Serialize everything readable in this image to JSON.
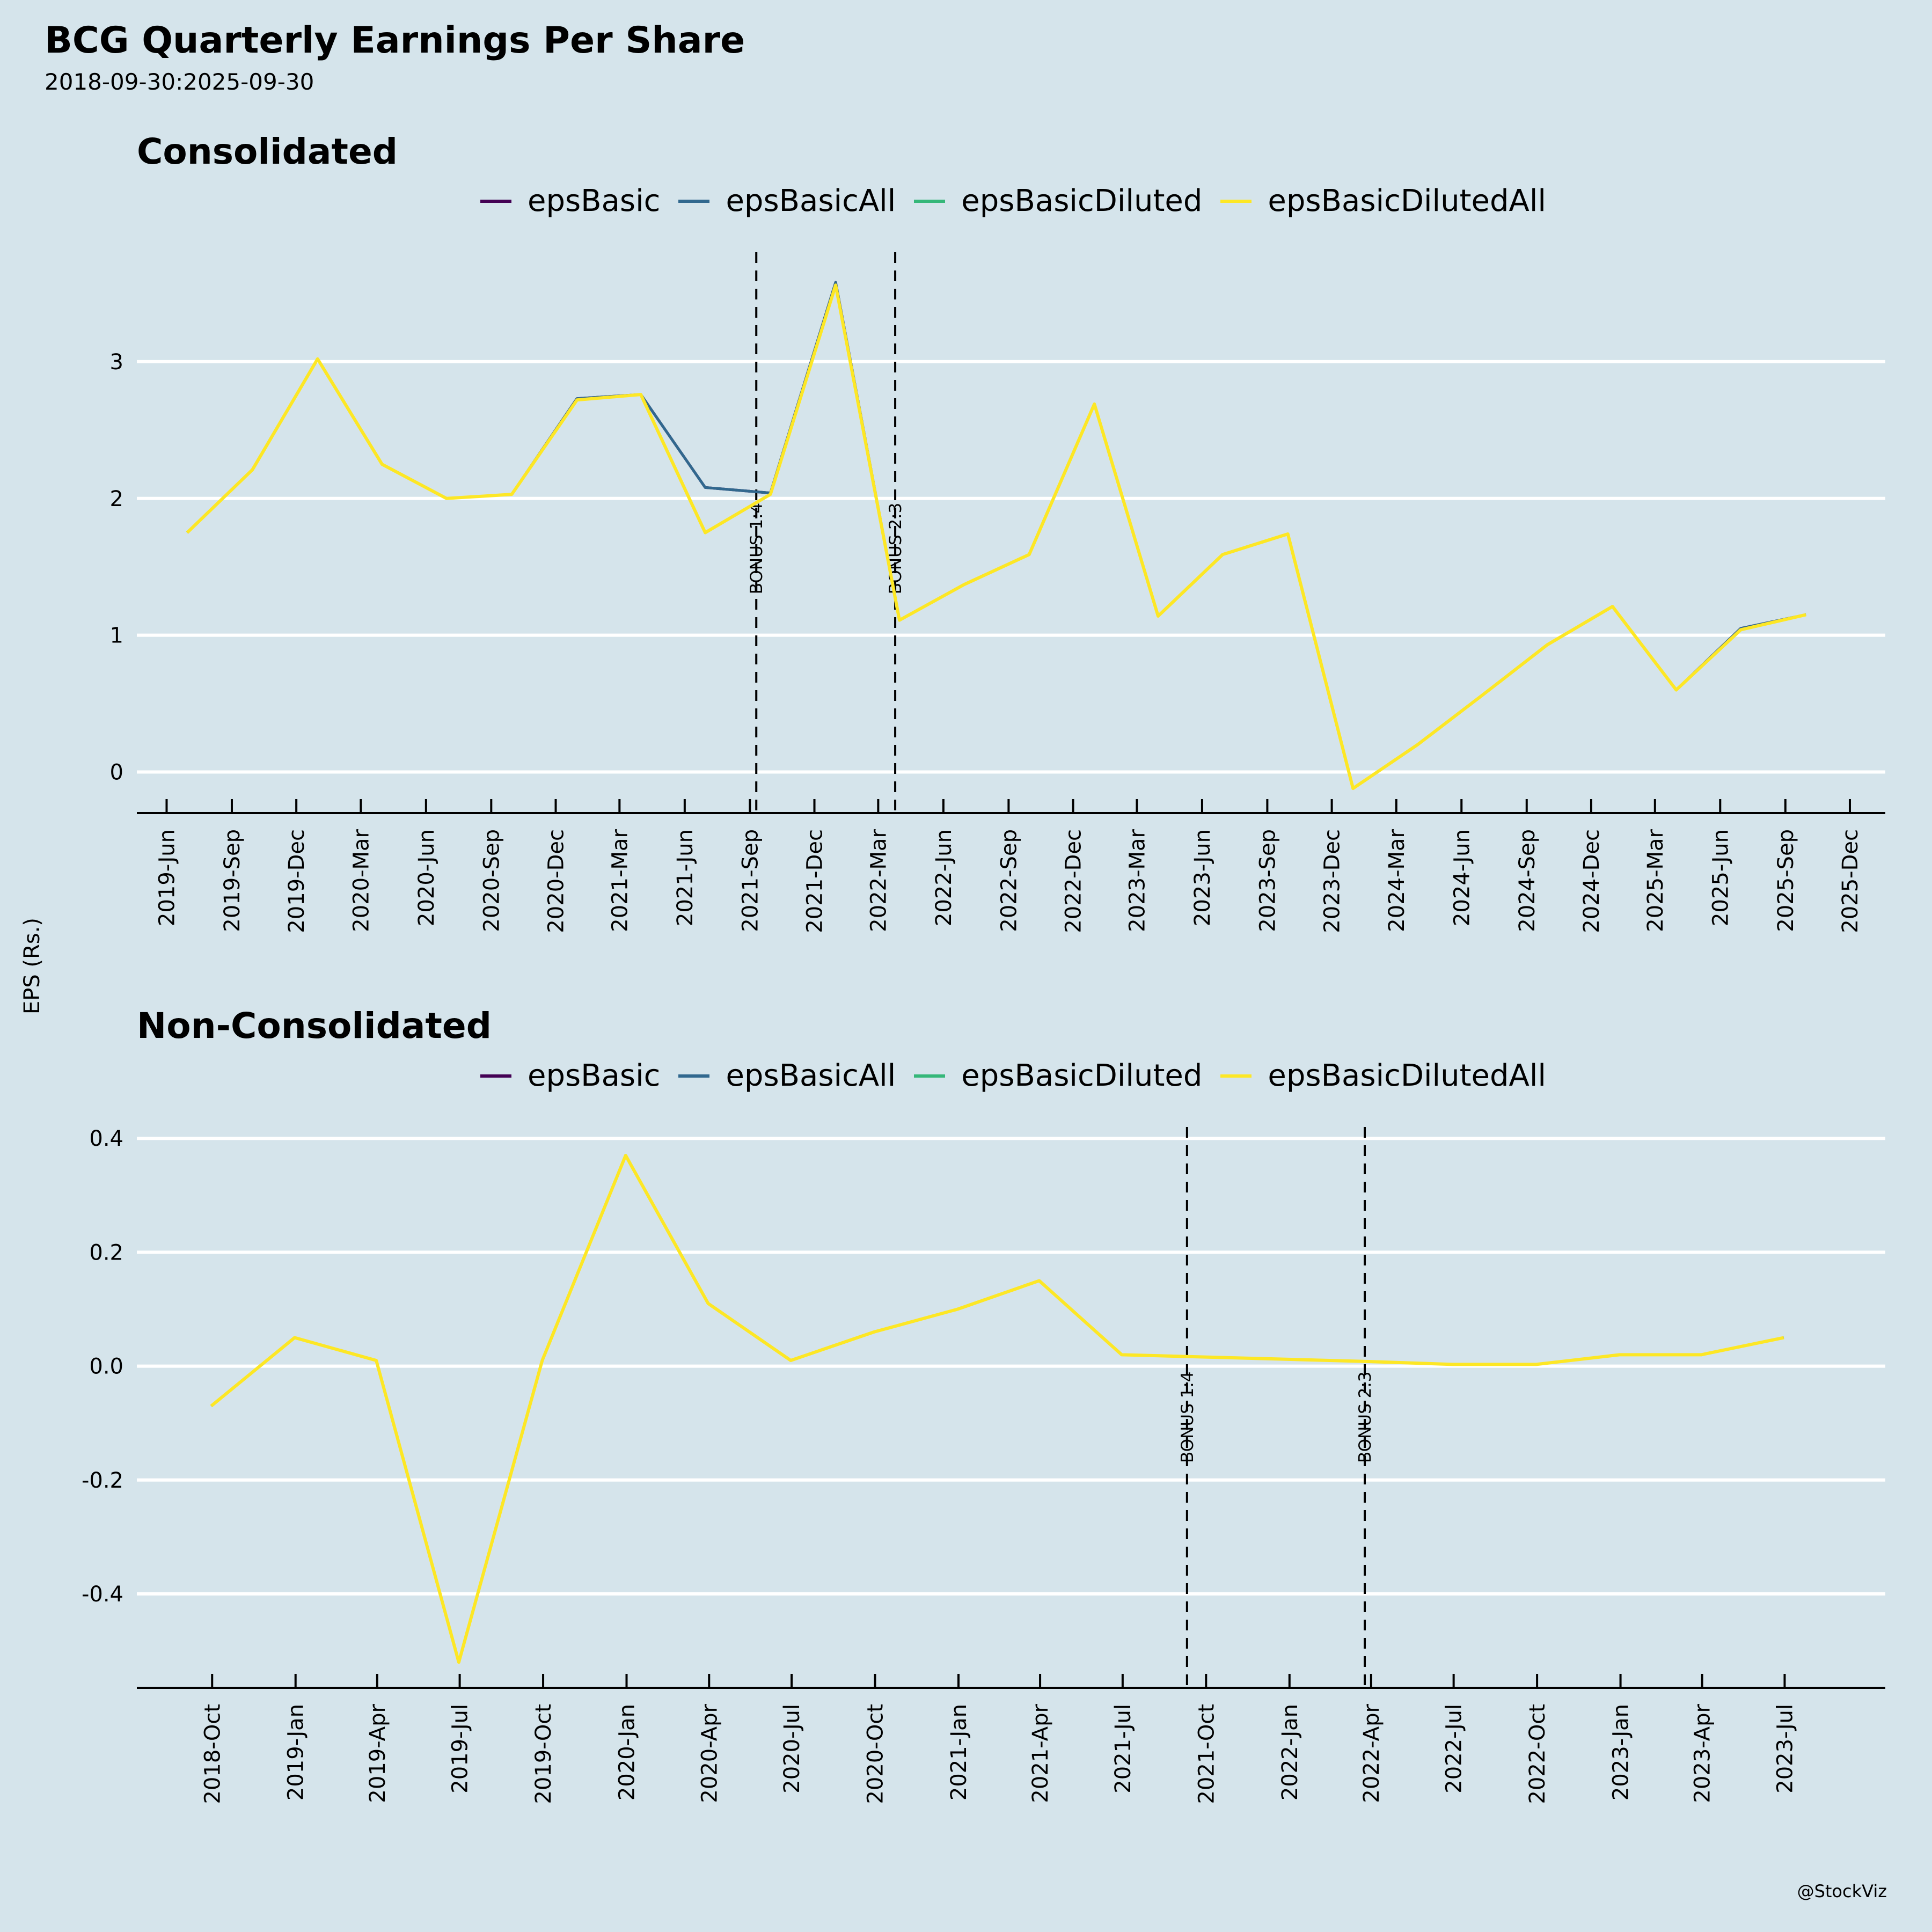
{
  "header": {
    "title": "BCG Quarterly Earnings Per Share",
    "subtitle": "2018-09-30:2025-09-30",
    "y_axis_label": "EPS (Rs.)",
    "credit": "@StockViz"
  },
  "colors": {
    "background": "#d5e4eb",
    "gridline": "#ffffff",
    "axis": "#000000",
    "epsBasic": "#440154",
    "epsBasicAll": "#31688e",
    "epsBasicDiluted": "#35b779",
    "epsBasicDilutedAll": "#fde725"
  },
  "chart_data": [
    {
      "type": "line",
      "title": "Consolidated",
      "xlabel": "",
      "ylabel": "EPS (Rs.)",
      "legend": [
        "epsBasic",
        "epsBasicAll",
        "epsBasicDiluted",
        "epsBasicDilutedAll"
      ],
      "legend_position": "top",
      "grid": "horizontal",
      "ylim": [
        -0.3,
        3.8
      ],
      "yticks": [
        0,
        1,
        2,
        3
      ],
      "ytick_labels": [
        "0",
        "1",
        "2",
        "3"
      ],
      "xlim": [
        "2019-04-20",
        "2026-01-20"
      ],
      "xticks": [
        "2019-06-01",
        "2019-09-01",
        "2019-12-01",
        "2020-03-01",
        "2020-06-01",
        "2020-09-01",
        "2020-12-01",
        "2021-03-01",
        "2021-06-01",
        "2021-09-01",
        "2021-12-01",
        "2022-03-01",
        "2022-06-01",
        "2022-09-01",
        "2022-12-01",
        "2023-03-01",
        "2023-06-01",
        "2023-09-01",
        "2023-12-01",
        "2024-03-01",
        "2024-06-01",
        "2024-09-01",
        "2024-12-01",
        "2025-03-01",
        "2025-06-01",
        "2025-09-01",
        "2025-12-01"
      ],
      "xtick_labels": [
        "2019-Jun",
        "2019-Sep",
        "2019-Dec",
        "2020-Mar",
        "2020-Jun",
        "2020-Sep",
        "2020-Dec",
        "2021-Mar",
        "2021-Jun",
        "2021-Sep",
        "2021-Dec",
        "2022-Mar",
        "2022-Jun",
        "2022-Sep",
        "2022-Dec",
        "2023-Mar",
        "2023-Jun",
        "2023-Sep",
        "2023-Dec",
        "2024-Mar",
        "2024-Jun",
        "2024-Sep",
        "2024-Dec",
        "2025-Mar",
        "2025-Jun",
        "2025-Sep",
        "2025-Dec"
      ],
      "x": [
        "2019-06-30",
        "2019-09-30",
        "2019-12-31",
        "2020-03-31",
        "2020-06-30",
        "2020-09-30",
        "2020-12-31",
        "2021-03-31",
        "2021-06-30",
        "2021-09-30",
        "2021-12-31",
        "2022-03-31",
        "2022-06-30",
        "2022-09-30",
        "2022-12-31",
        "2023-03-31",
        "2023-06-30",
        "2023-09-30",
        "2023-12-31",
        "2024-03-31",
        "2024-06-30",
        "2024-09-30",
        "2024-12-31",
        "2025-03-31",
        "2025-06-30",
        "2025-09-30"
      ],
      "series": [
        {
          "name": "epsBasic",
          "values": [
            1.75,
            2.21,
            3.02,
            2.25,
            2.0,
            2.03,
            2.73,
            2.76,
            2.08,
            2.04,
            3.58,
            1.11,
            1.37,
            1.59,
            2.69,
            1.14,
            1.59,
            1.74,
            -0.12,
            0.2,
            0.56,
            0.93,
            1.21,
            0.6,
            1.05,
            1.15
          ]
        },
        {
          "name": "epsBasicAll",
          "values": [
            1.75,
            2.21,
            3.02,
            2.25,
            2.0,
            2.03,
            2.73,
            2.76,
            2.08,
            2.04,
            3.58,
            1.11,
            1.37,
            1.59,
            2.69,
            1.14,
            1.59,
            1.74,
            -0.12,
            0.2,
            0.56,
            0.93,
            1.21,
            0.6,
            1.05,
            1.15
          ]
        },
        {
          "name": "epsBasicDiluted",
          "values": [
            1.75,
            2.21,
            3.02,
            2.25,
            2.0,
            2.03,
            2.72,
            2.76,
            1.75,
            2.03,
            3.56,
            1.11,
            1.37,
            1.59,
            2.69,
            1.14,
            1.59,
            1.74,
            -0.12,
            0.2,
            0.56,
            0.93,
            1.21,
            0.6,
            1.04,
            1.15
          ]
        },
        {
          "name": "epsBasicDilutedAll",
          "values": [
            1.75,
            2.21,
            3.02,
            2.25,
            2.0,
            2.03,
            2.72,
            2.76,
            1.75,
            2.03,
            3.56,
            1.11,
            1.37,
            1.59,
            2.69,
            1.14,
            1.59,
            1.74,
            -0.12,
            0.2,
            0.56,
            0.93,
            1.21,
            0.6,
            1.04,
            1.15
          ]
        }
      ],
      "annotations": [
        {
          "label": "BONUS 1:4",
          "x": "2021-09-10"
        },
        {
          "label": "BONUS 2:3",
          "x": "2022-03-25"
        }
      ]
    },
    {
      "type": "line",
      "title": "Non-Consolidated",
      "xlabel": "",
      "ylabel": "EPS (Rs.)",
      "legend": [
        "epsBasic",
        "epsBasicAll",
        "epsBasicDiluted",
        "epsBasicDilutedAll"
      ],
      "legend_position": "top",
      "grid": "horizontal",
      "ylim": [
        -0.565,
        0.42
      ],
      "yticks": [
        -0.4,
        -0.2,
        0.0,
        0.2,
        0.4
      ],
      "ytick_labels": [
        "-0.4",
        "-0.2",
        "0.0",
        "0.2",
        "0.4"
      ],
      "xlim": [
        "2018-07-10",
        "2023-10-20"
      ],
      "xticks": [
        "2018-10-01",
        "2019-01-01",
        "2019-04-01",
        "2019-07-01",
        "2019-10-01",
        "2020-01-01",
        "2020-04-01",
        "2020-07-01",
        "2020-10-01",
        "2021-01-01",
        "2021-04-01",
        "2021-07-01",
        "2021-10-01",
        "2022-01-01",
        "2022-04-01",
        "2022-07-01",
        "2022-10-01",
        "2023-01-01",
        "2023-04-01",
        "2023-07-01"
      ],
      "xtick_labels": [
        "2018-Oct",
        "2019-Jan",
        "2019-Apr",
        "2019-Jul",
        "2019-Oct",
        "2020-Jan",
        "2020-Apr",
        "2020-Jul",
        "2020-Oct",
        "2021-Jan",
        "2021-Apr",
        "2021-Jul",
        "2021-Oct",
        "2022-Jan",
        "2022-Apr",
        "2022-Jul",
        "2022-Oct",
        "2023-Jan",
        "2023-Apr",
        "2023-Jul"
      ],
      "x": [
        "2018-09-30",
        "2018-12-31",
        "2019-03-31",
        "2019-06-30",
        "2019-09-30",
        "2019-12-31",
        "2020-03-31",
        "2020-06-30",
        "2020-09-30",
        "2020-12-31",
        "2021-03-31",
        "2021-06-30",
        "2021-09-30",
        "2021-12-31",
        "2022-03-31",
        "2022-06-30",
        "2022-09-30",
        "2022-12-31",
        "2023-03-31",
        "2023-06-30"
      ],
      "series": [
        {
          "name": "epsBasic",
          "values": [
            -0.07,
            0.05,
            0.01,
            -0.52,
            0.01,
            0.37,
            0.11,
            0.01,
            0.06,
            0.1,
            0.15,
            0.02,
            0.016,
            0.012,
            0.008,
            0.003,
            0.003,
            0.02,
            0.02,
            0.05
          ]
        },
        {
          "name": "epsBasicAll",
          "values": [
            -0.07,
            0.05,
            0.01,
            -0.52,
            0.01,
            0.37,
            0.11,
            0.01,
            0.06,
            0.1,
            0.15,
            0.02,
            0.016,
            0.012,
            0.008,
            0.003,
            0.003,
            0.02,
            0.02,
            0.05
          ]
        },
        {
          "name": "epsBasicDiluted",
          "values": [
            -0.07,
            0.05,
            0.01,
            -0.52,
            0.01,
            0.37,
            0.11,
            0.01,
            0.06,
            0.1,
            0.15,
            0.02,
            0.016,
            0.012,
            0.008,
            0.003,
            0.003,
            0.02,
            0.02,
            0.05
          ]
        },
        {
          "name": "epsBasicDilutedAll",
          "values": [
            -0.07,
            0.05,
            0.01,
            -0.52,
            0.01,
            0.37,
            0.11,
            0.01,
            0.06,
            0.1,
            0.15,
            0.02,
            0.016,
            0.012,
            0.008,
            0.003,
            0.003,
            0.02,
            0.02,
            0.05
          ]
        }
      ],
      "annotations": [
        {
          "label": "BONUS 1:4",
          "x": "2021-09-10"
        },
        {
          "label": "BONUS 2:3",
          "x": "2022-03-25"
        }
      ]
    }
  ]
}
